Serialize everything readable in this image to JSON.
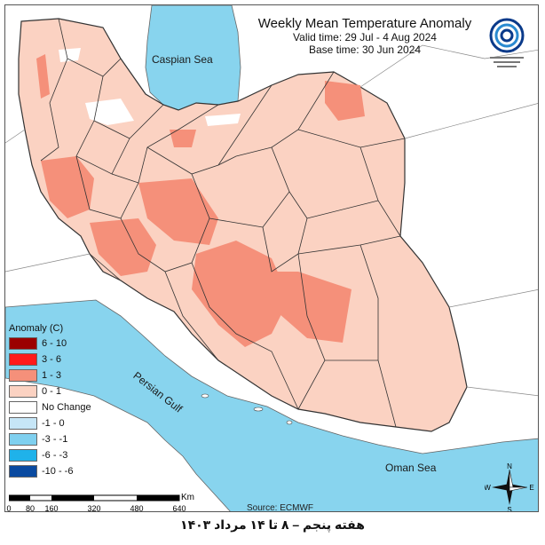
{
  "header": {
    "title": "Weekly Mean Temperature Anomaly",
    "valid_time": "Valid time: 29 Jul - 4 Aug 2024",
    "base_time": "Base time: 30 Jun 2024"
  },
  "labels": {
    "caspian": "Caspian Sea",
    "persian_gulf": "Persian Gulf",
    "oman_sea": "Oman Sea"
  },
  "legend": {
    "title": "Anomaly (C)",
    "items": [
      {
        "label": "6 - 10",
        "color": "#9b0000"
      },
      {
        "label": "3 - 6",
        "color": "#ff1a1a"
      },
      {
        "label": "1 - 3",
        "color": "#f5907a"
      },
      {
        "label": "0 - 1",
        "color": "#fbd2c2"
      },
      {
        "label": "No Change",
        "color": "#ffffff"
      },
      {
        "label": "-1 - 0",
        "color": "#c6e6f7"
      },
      {
        "label": "-3 - -1",
        "color": "#7fd0ef"
      },
      {
        "label": "-6 - -3",
        "color": "#1fb2ea"
      },
      {
        "label": "-10 - -6",
        "color": "#0a4aa0"
      }
    ]
  },
  "scalebar": {
    "unit": "Km",
    "ticks": [
      "0",
      "80",
      "160",
      "320",
      "480",
      "640"
    ]
  },
  "source": "Source: ECMWF",
  "compass": {
    "n": "N",
    "s": "S",
    "e": "E",
    "w": "W"
  },
  "footer": "هفته پنجم – ۸ تا ۱۴ مرداد ۱۴۰۳",
  "colors": {
    "water": "#88d4ee",
    "land_outside": "#ffffff",
    "anomaly_low": "#fbd2c2",
    "anomaly_mid": "#f5907a",
    "border": "#333333"
  }
}
